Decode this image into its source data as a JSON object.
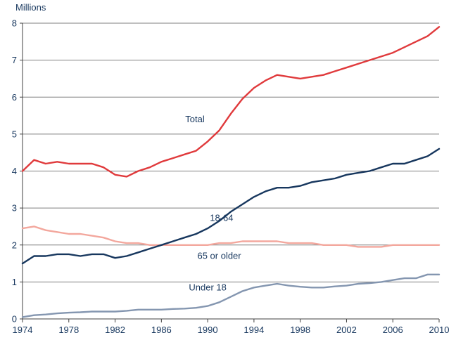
{
  "page": {
    "y_axis_title": "Millions"
  },
  "chart_data": {
    "type": "line",
    "title": "",
    "xlabel": "",
    "ylabel": "Millions",
    "xlim": [
      1974,
      2010
    ],
    "ylim": [
      0,
      8
    ],
    "xticks": [
      1974,
      1978,
      1982,
      1986,
      1990,
      1994,
      1998,
      2002,
      2006,
      2010
    ],
    "yticks": [
      0,
      1,
      2,
      3,
      4,
      5,
      6,
      7,
      8
    ],
    "grid": true,
    "legend_position": "inline-annotations",
    "colors": {
      "total": "#e03a3c",
      "adults_18_64": "#17375e",
      "older_65_plus": "#f3a79d",
      "under_18": "#8496b0",
      "gridline": "#7f7f7f",
      "axis": "#404040",
      "text": "#17375e"
    },
    "x": [
      1974,
      1975,
      1976,
      1977,
      1978,
      1979,
      1980,
      1981,
      1982,
      1983,
      1984,
      1985,
      1986,
      1987,
      1988,
      1989,
      1990,
      1991,
      1992,
      1993,
      1994,
      1995,
      1996,
      1997,
      1998,
      1999,
      2000,
      2001,
      2002,
      2003,
      2004,
      2005,
      2006,
      2007,
      2008,
      2009,
      2010
    ],
    "series": [
      {
        "name": "Total",
        "slug": "total",
        "color": "#e03a3c",
        "values": [
          4.0,
          4.3,
          4.2,
          4.25,
          4.2,
          4.2,
          4.2,
          4.1,
          3.9,
          3.85,
          4.0,
          4.1,
          4.25,
          4.35,
          4.45,
          4.55,
          4.8,
          5.1,
          5.55,
          5.95,
          6.25,
          6.45,
          6.6,
          6.55,
          6.5,
          6.55,
          6.6,
          6.7,
          6.8,
          6.9,
          7.0,
          7.1,
          7.2,
          7.35,
          7.5,
          7.65,
          7.9
        ]
      },
      {
        "name": "18-64",
        "slug": "adults-18-64",
        "color": "#17375e",
        "values": [
          1.5,
          1.7,
          1.7,
          1.75,
          1.75,
          1.7,
          1.75,
          1.75,
          1.65,
          1.7,
          1.8,
          1.9,
          2.0,
          2.1,
          2.2,
          2.3,
          2.45,
          2.65,
          2.9,
          3.1,
          3.3,
          3.45,
          3.55,
          3.55,
          3.6,
          3.7,
          3.75,
          3.8,
          3.9,
          3.95,
          4.0,
          4.1,
          4.2,
          4.2,
          4.3,
          4.4,
          4.6
        ]
      },
      {
        "name": "65 or older",
        "slug": "age-65-or-older",
        "color": "#f3a79d",
        "values": [
          2.45,
          2.5,
          2.4,
          2.35,
          2.3,
          2.3,
          2.25,
          2.2,
          2.1,
          2.05,
          2.05,
          2.0,
          2.0,
          2.0,
          2.0,
          2.0,
          2.0,
          2.05,
          2.05,
          2.1,
          2.1,
          2.1,
          2.1,
          2.05,
          2.05,
          2.05,
          2.0,
          2.0,
          2.0,
          1.95,
          1.95,
          1.95,
          2.0,
          2.0,
          2.0,
          2.0,
          2.0
        ]
      },
      {
        "name": "Under 18",
        "slug": "under-18",
        "color": "#8496b0",
        "values": [
          0.05,
          0.1,
          0.12,
          0.15,
          0.17,
          0.18,
          0.2,
          0.2,
          0.2,
          0.22,
          0.25,
          0.25,
          0.25,
          0.27,
          0.28,
          0.3,
          0.35,
          0.45,
          0.6,
          0.75,
          0.85,
          0.9,
          0.95,
          0.9,
          0.87,
          0.85,
          0.85,
          0.88,
          0.9,
          0.95,
          0.97,
          1.0,
          1.05,
          1.1,
          1.1,
          1.2,
          1.2
        ]
      }
    ],
    "annotations": [
      {
        "text": "Total",
        "x": 1988.9,
        "y": 5.4
      },
      {
        "text": "18-64",
        "x": 1991.2,
        "y": 2.73
      },
      {
        "text": "65 or older",
        "x": 1991.0,
        "y": 1.7
      },
      {
        "text": "Under 18",
        "x": 1990.0,
        "y": 0.85
      }
    ]
  }
}
